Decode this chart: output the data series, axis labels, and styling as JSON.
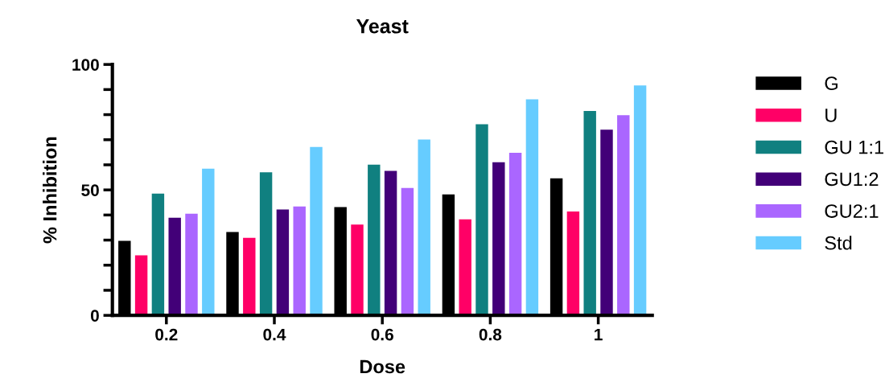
{
  "chart_data": {
    "type": "bar",
    "title": "Yeast",
    "xlabel": "Dose",
    "ylabel": "% Inhibition",
    "categories": [
      "0.2",
      "0.4",
      "0.6",
      "0.8",
      "1"
    ],
    "series": [
      {
        "name": "G",
        "color": "#000000",
        "values": [
          29.7,
          33.2,
          43.2,
          48.2,
          54.6
        ]
      },
      {
        "name": "U",
        "color": "#ff0066",
        "values": [
          23.9,
          30.9,
          36.2,
          38.3,
          41.4
        ]
      },
      {
        "name": "GU 1:1",
        "color": "#108080",
        "values": [
          48.5,
          57.0,
          60.1,
          76.2,
          81.5
        ]
      },
      {
        "name": "GU1:2",
        "color": "#420078",
        "values": [
          38.9,
          42.2,
          57.6,
          61.0,
          74.0
        ]
      },
      {
        "name": "GU2:1",
        "color": "#aa66ff",
        "values": [
          40.5,
          43.4,
          50.8,
          64.8,
          79.8
        ]
      },
      {
        "name": "Std",
        "color": "#66ccff",
        "values": [
          58.5,
          67.1,
          70.1,
          86.1,
          91.6
        ]
      }
    ],
    "ylim": [
      0,
      100
    ],
    "yticks": [
      0,
      {
        "value": 10,
        "label": null
      },
      {
        "value": 20,
        "label": null
      },
      {
        "value": 30,
        "label": null
      },
      {
        "value": 40,
        "label": null
      },
      50,
      {
        "value": 60,
        "label": null
      },
      {
        "value": 70,
        "label": null
      },
      {
        "value": 80,
        "label": null
      },
      {
        "value": 90,
        "label": null
      },
      100
    ],
    "grid": false,
    "legend": "right"
  }
}
